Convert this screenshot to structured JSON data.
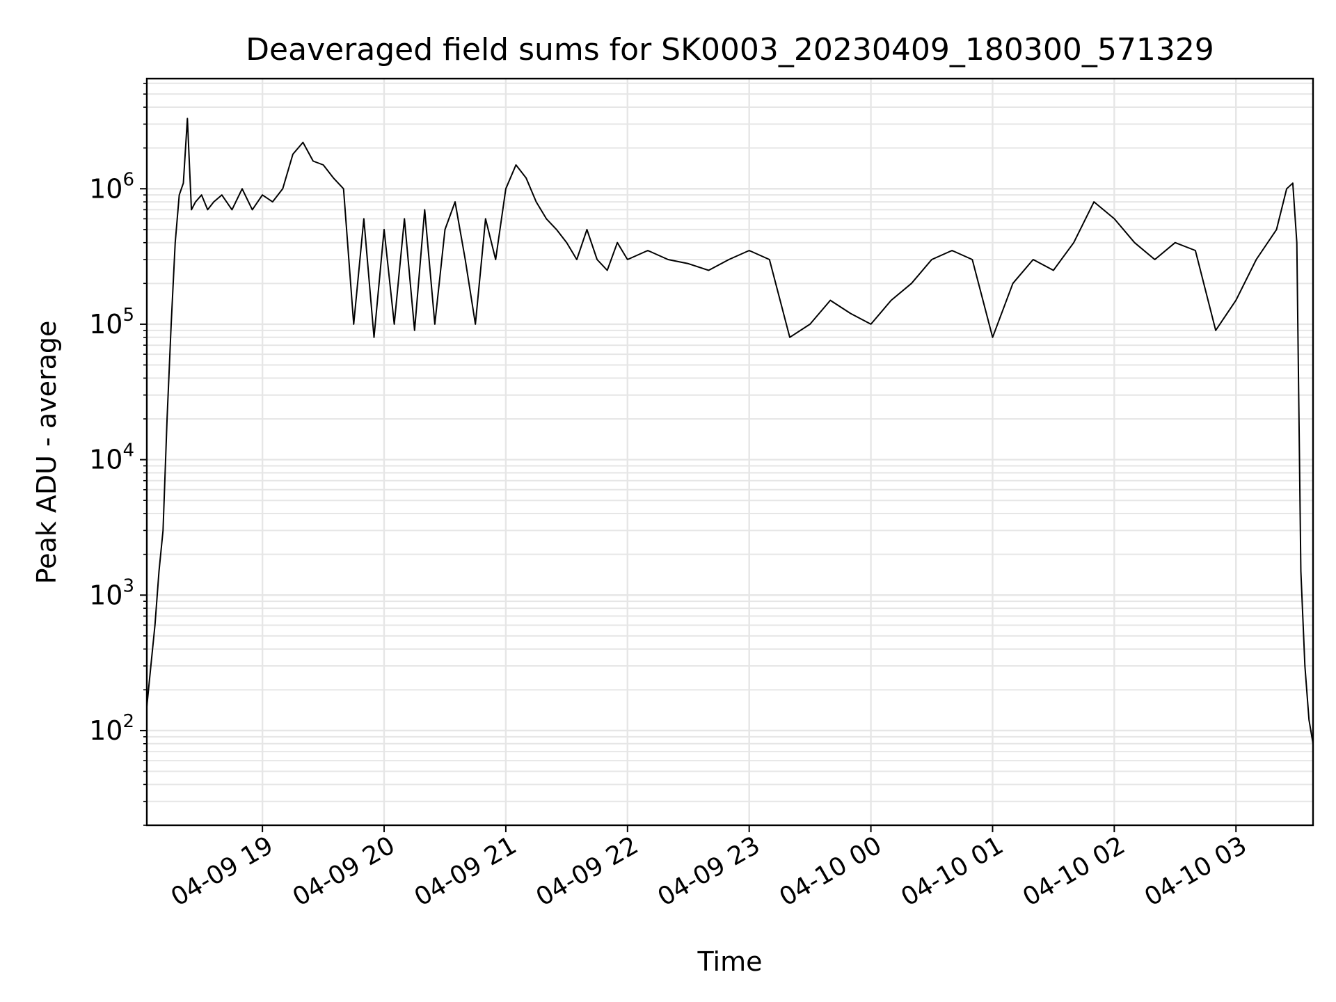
{
  "chart_data": {
    "type": "line",
    "title": "Deaveraged field sums for SK0003_20230409_180300_571329",
    "xlabel": "Time",
    "ylabel": "Peak ADU - average",
    "yscale": "log",
    "ylim": [
      20,
      6500000
    ],
    "xlim": [
      "2023-04-09 18:03:00",
      "2023-04-10 03:38:00"
    ],
    "grid": true,
    "line_color": "#000000",
    "x_ticks": [
      {
        "label": "04-09 19",
        "value": "2023-04-09 19:00"
      },
      {
        "label": "04-09 20",
        "value": "2023-04-09 20:00"
      },
      {
        "label": "04-09 21",
        "value": "2023-04-09 21:00"
      },
      {
        "label": "04-09 22",
        "value": "2023-04-09 22:00"
      },
      {
        "label": "04-09 23",
        "value": "2023-04-09 23:00"
      },
      {
        "label": "04-10 00",
        "value": "2023-04-10 00:00"
      },
      {
        "label": "04-10 01",
        "value": "2023-04-10 01:00"
      },
      {
        "label": "04-10 02",
        "value": "2023-04-10 02:00"
      },
      {
        "label": "04-10 03",
        "value": "2023-04-10 03:00"
      }
    ],
    "y_ticks": [
      {
        "base": "10",
        "exp": "2",
        "value": 100
      },
      {
        "base": "10",
        "exp": "3",
        "value": 1000
      },
      {
        "base": "10",
        "exp": "4",
        "value": 10000
      },
      {
        "base": "10",
        "exp": "5",
        "value": 100000
      },
      {
        "base": "10",
        "exp": "6",
        "value": 1000000
      }
    ],
    "series": [
      {
        "x": [
          "2023-04-09 18:03",
          "2023-04-09 18:05",
          "2023-04-09 18:07",
          "2023-04-09 18:09",
          "2023-04-09 18:11",
          "2023-04-09 18:13",
          "2023-04-09 18:15",
          "2023-04-09 18:17",
          "2023-04-09 18:19",
          "2023-04-09 18:21",
          "2023-04-09 18:23",
          "2023-04-09 18:25",
          "2023-04-09 18:27",
          "2023-04-09 18:30",
          "2023-04-09 18:33",
          "2023-04-09 18:36",
          "2023-04-09 18:40",
          "2023-04-09 18:45",
          "2023-04-09 18:50",
          "2023-04-09 18:55",
          "2023-04-09 19:00",
          "2023-04-09 19:05",
          "2023-04-09 19:10",
          "2023-04-09 19:15",
          "2023-04-09 19:20",
          "2023-04-09 19:25",
          "2023-04-09 19:30",
          "2023-04-09 19:35",
          "2023-04-09 19:40",
          "2023-04-09 19:45",
          "2023-04-09 19:50",
          "2023-04-09 19:55",
          "2023-04-09 20:00",
          "2023-04-09 20:05",
          "2023-04-09 20:10",
          "2023-04-09 20:15",
          "2023-04-09 20:20",
          "2023-04-09 20:25",
          "2023-04-09 20:30",
          "2023-04-09 20:35",
          "2023-04-09 20:40",
          "2023-04-09 20:45",
          "2023-04-09 20:50",
          "2023-04-09 20:55",
          "2023-04-09 21:00",
          "2023-04-09 21:05",
          "2023-04-09 21:10",
          "2023-04-09 21:15",
          "2023-04-09 21:20",
          "2023-04-09 21:25",
          "2023-04-09 21:30",
          "2023-04-09 21:35",
          "2023-04-09 21:40",
          "2023-04-09 21:45",
          "2023-04-09 21:50",
          "2023-04-09 21:55",
          "2023-04-09 22:00",
          "2023-04-09 22:10",
          "2023-04-09 22:20",
          "2023-04-09 22:30",
          "2023-04-09 22:40",
          "2023-04-09 22:50",
          "2023-04-09 23:00",
          "2023-04-09 23:10",
          "2023-04-09 23:20",
          "2023-04-09 23:30",
          "2023-04-09 23:40",
          "2023-04-09 23:50",
          "2023-04-10 00:00",
          "2023-04-10 00:10",
          "2023-04-10 00:20",
          "2023-04-10 00:30",
          "2023-04-10 00:40",
          "2023-04-10 00:50",
          "2023-04-10 01:00",
          "2023-04-10 01:10",
          "2023-04-10 01:20",
          "2023-04-10 01:30",
          "2023-04-10 01:40",
          "2023-04-10 01:50",
          "2023-04-10 02:00",
          "2023-04-10 02:10",
          "2023-04-10 02:20",
          "2023-04-10 02:30",
          "2023-04-10 02:40",
          "2023-04-10 02:50",
          "2023-04-10 03:00",
          "2023-04-10 03:10",
          "2023-04-10 03:20",
          "2023-04-10 03:25",
          "2023-04-10 03:28",
          "2023-04-10 03:30",
          "2023-04-10 03:32",
          "2023-04-10 03:34",
          "2023-04-10 03:36",
          "2023-04-10 03:38"
        ],
        "y": [
          150,
          300,
          600,
          1500,
          3000,
          20000,
          100000,
          400000,
          900000,
          1100000,
          3300000,
          700000,
          800000,
          900000,
          700000,
          800000,
          900000,
          700000,
          1000000,
          700000,
          900000,
          800000,
          1000000,
          1800000,
          2200000,
          1600000,
          1500000,
          1200000,
          1000000,
          100000,
          600000,
          80000,
          500000,
          100000,
          600000,
          90000,
          700000,
          100000,
          500000,
          800000,
          300000,
          100000,
          600000,
          300000,
          1000000,
          1500000,
          1200000,
          800000,
          600000,
          500000,
          400000,
          300000,
          500000,
          300000,
          250000,
          400000,
          300000,
          350000,
          300000,
          280000,
          250000,
          300000,
          350000,
          300000,
          80000,
          100000,
          150000,
          120000,
          100000,
          150000,
          200000,
          300000,
          350000,
          300000,
          80000,
          200000,
          300000,
          250000,
          400000,
          800000,
          600000,
          400000,
          300000,
          400000,
          350000,
          90000,
          150000,
          300000,
          500000,
          1000000,
          1100000,
          400000,
          1500,
          300,
          120,
          80
        ]
      }
    ]
  }
}
